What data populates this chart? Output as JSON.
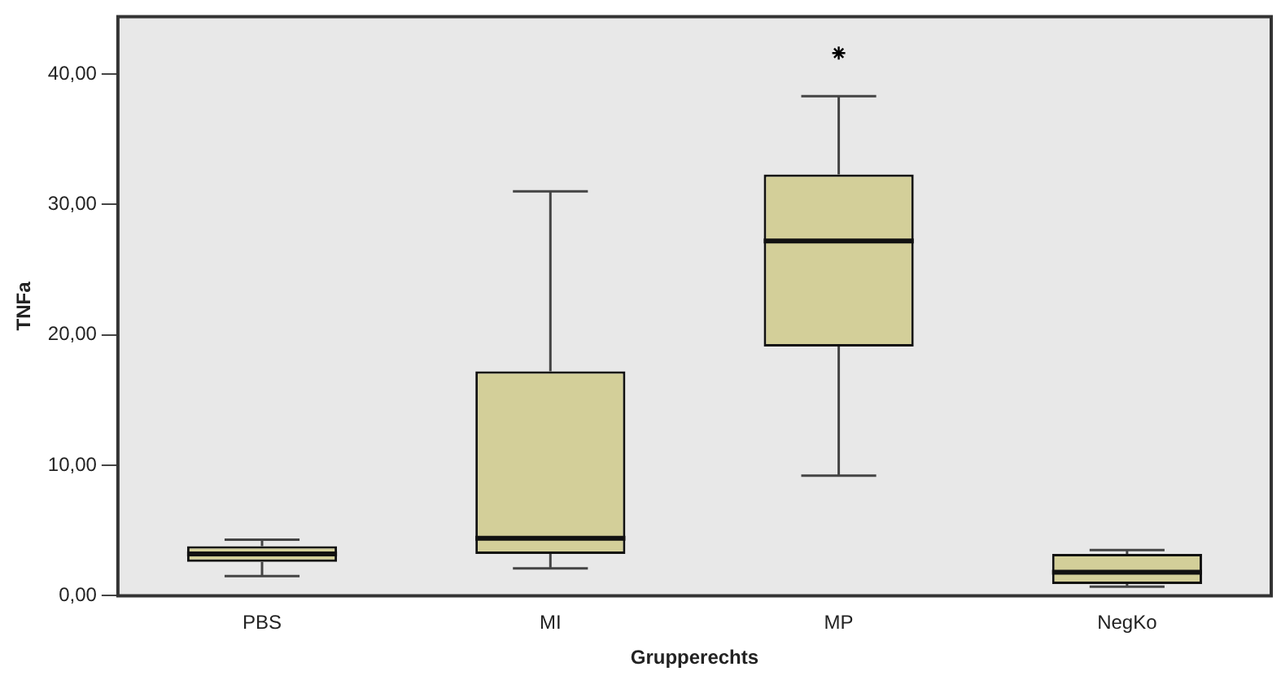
{
  "chart_data": {
    "type": "box",
    "xlabel": "Grupperechts",
    "ylabel": "TNFa",
    "categories": [
      "PBS",
      "MI",
      "MP",
      "NegKo"
    ],
    "series": [
      {
        "color": "#d3cf99",
        "boxes": [
          {
            "low": 1.5,
            "q1": 2.6,
            "median": 3.2,
            "q3": 3.8,
            "high": 4.3
          },
          {
            "low": 2.1,
            "q1": 3.2,
            "median": 4.4,
            "q3": 17.2,
            "high": 31.0
          },
          {
            "low": 9.2,
            "q1": 19.1,
            "median": 27.2,
            "q3": 32.3,
            "high": 38.3,
            "outliers": [
              41.6
            ]
          },
          {
            "low": 0.7,
            "q1": 0.9,
            "median": 1.8,
            "q3": 3.2,
            "high": 3.5
          }
        ]
      }
    ],
    "ylim": [
      0,
      44.4
    ],
    "yticks": [
      {
        "value": 0,
        "label": "0,00"
      },
      {
        "value": 10,
        "label": "10,00"
      },
      {
        "value": 20,
        "label": "20,00"
      },
      {
        "value": 30,
        "label": "30,00"
      },
      {
        "value": 40,
        "label": "40,00"
      }
    ],
    "marker": "star",
    "grid": false,
    "legend": false
  }
}
